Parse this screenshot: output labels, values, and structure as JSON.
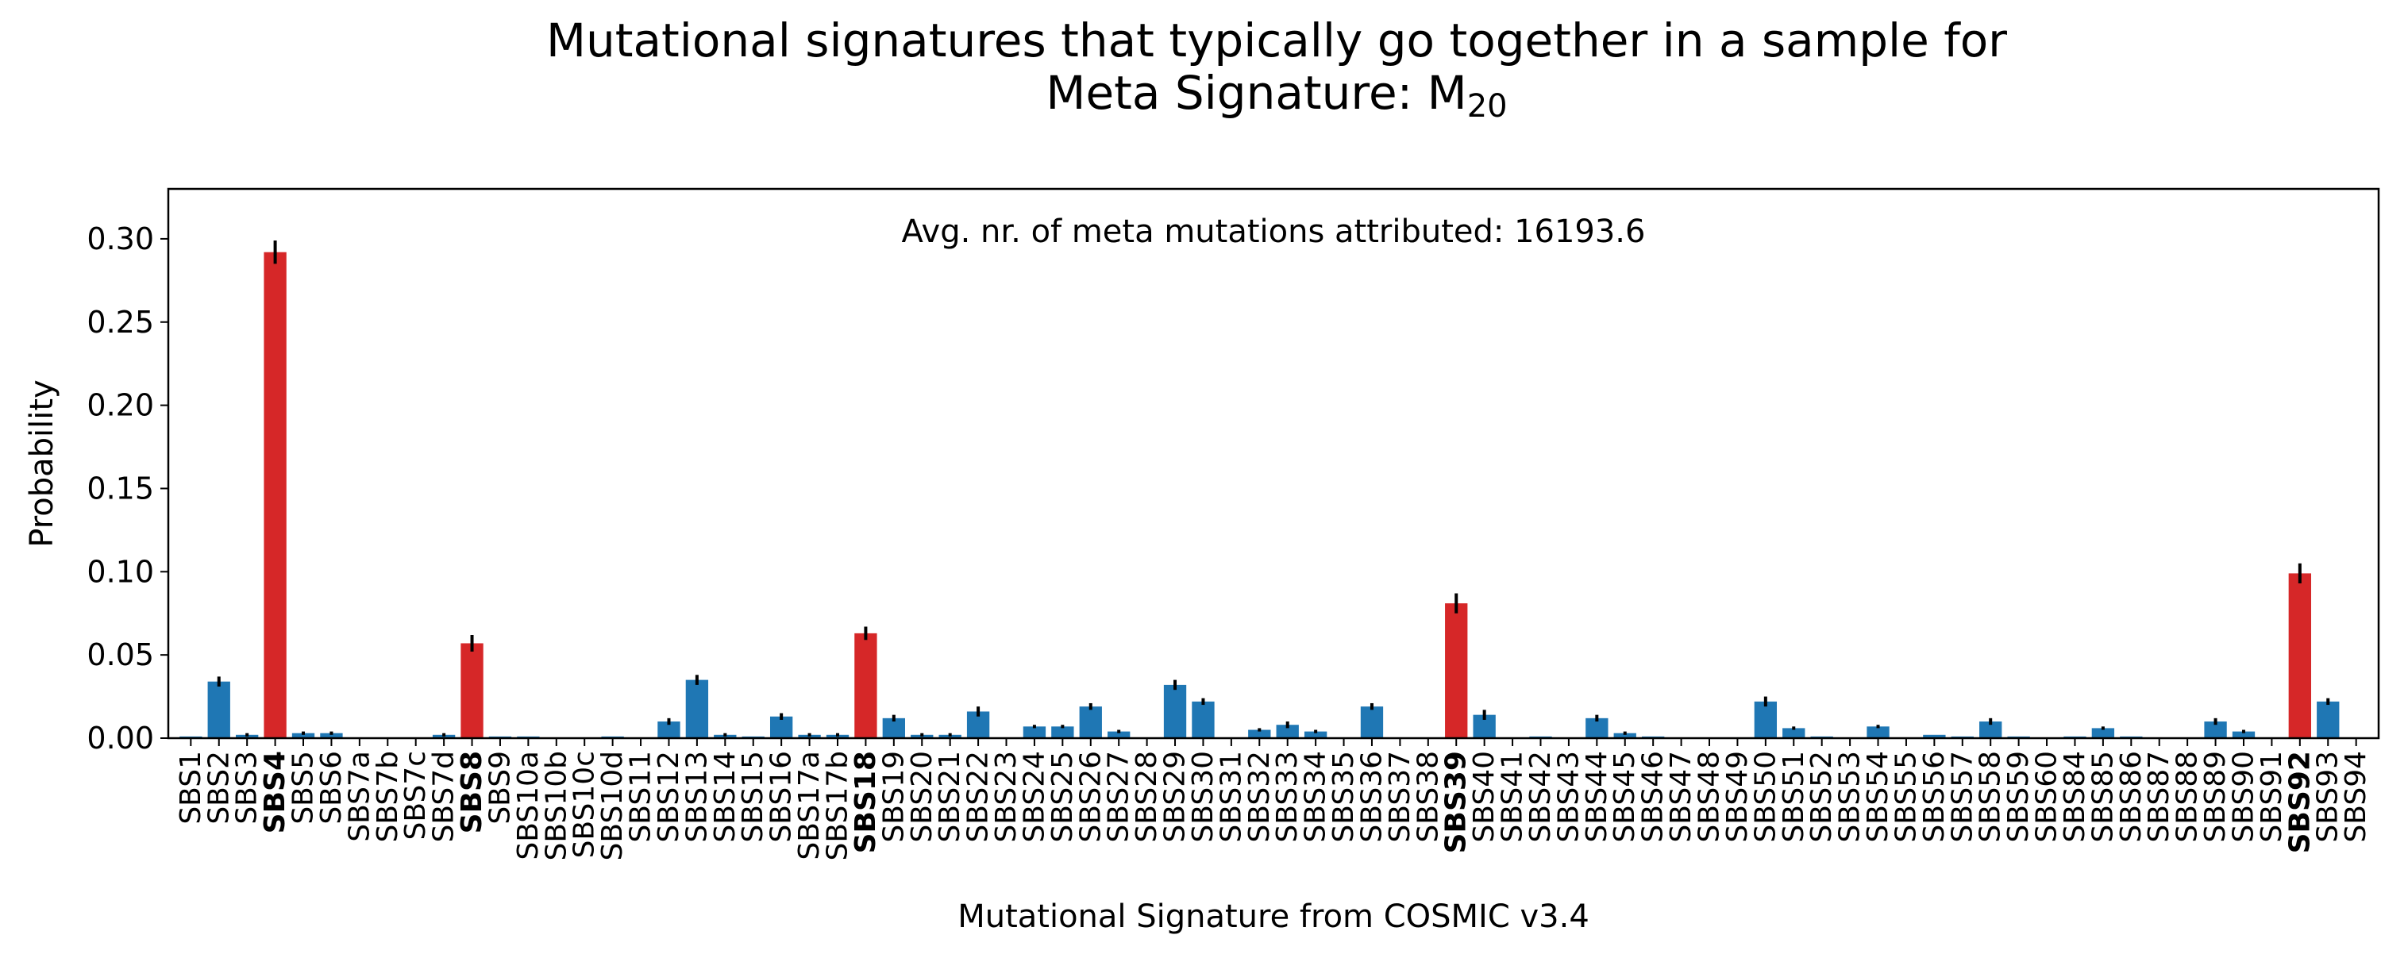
{
  "chart_data": {
    "type": "bar",
    "title": "Mutational signatures that typically go together in a sample for",
    "subtitle_prefix": "Meta Signature: M",
    "subtitle_sub": "20",
    "annotation": "Avg. nr. of meta mutations attributed: 16193.6",
    "xlabel": "Mutational Signature from COSMIC v3.4",
    "ylabel": "Probability",
    "ylim": [
      0,
      0.33
    ],
    "yticks": [
      "0.00",
      "0.05",
      "0.10",
      "0.15",
      "0.20",
      "0.25",
      "0.30"
    ],
    "grid": false,
    "colors": {
      "default": "#1f77b4",
      "highlight": "#d62728",
      "error": "#000000"
    },
    "categories": [
      "SBS1",
      "SBS2",
      "SBS3",
      "SBS4",
      "SBS5",
      "SBS6",
      "SBS7a",
      "SBS7b",
      "SBS7c",
      "SBS7d",
      "SBS8",
      "SBS9",
      "SBS10a",
      "SBS10b",
      "SBS10c",
      "SBS10d",
      "SBS11",
      "SBS12",
      "SBS13",
      "SBS14",
      "SBS15",
      "SBS16",
      "SBS17a",
      "SBS17b",
      "SBS18",
      "SBS19",
      "SBS20",
      "SBS21",
      "SBS22",
      "SBS23",
      "SBS24",
      "SBS25",
      "SBS26",
      "SBS27",
      "SBS28",
      "SBS29",
      "SBS30",
      "SBS31",
      "SBS32",
      "SBS33",
      "SBS34",
      "SBS35",
      "SBS36",
      "SBS37",
      "SBS38",
      "SBS39",
      "SBS40",
      "SBS41",
      "SBS42",
      "SBS43",
      "SBS44",
      "SBS45",
      "SBS46",
      "SBS47",
      "SBS48",
      "SBS49",
      "SBS50",
      "SBS51",
      "SBS52",
      "SBS53",
      "SBS54",
      "SBS55",
      "SBS56",
      "SBS57",
      "SBS58",
      "SBS59",
      "SBS60",
      "SBS84",
      "SBS85",
      "SBS86",
      "SBS87",
      "SBS88",
      "SBS89",
      "SBS90",
      "SBS91",
      "SBS92",
      "SBS93",
      "SBS94"
    ],
    "values": [
      0.001,
      0.034,
      0.002,
      0.292,
      0.003,
      0.003,
      0,
      0,
      0,
      0.002,
      0.057,
      0.001,
      0.001,
      0,
      0,
      0.001,
      0,
      0.01,
      0.035,
      0.002,
      0.001,
      0.013,
      0.002,
      0.002,
      0.063,
      0.012,
      0.002,
      0.002,
      0.016,
      0,
      0.007,
      0.007,
      0.019,
      0.004,
      0,
      0.032,
      0.022,
      0,
      0.005,
      0.008,
      0.004,
      0,
      0.019,
      0,
      0,
      0.081,
      0.014,
      0,
      0.001,
      0,
      0.012,
      0.003,
      0.001,
      0,
      0,
      0,
      0.022,
      0.006,
      0.001,
      0,
      0.007,
      0,
      0.002,
      0.001,
      0.01,
      0.001,
      0,
      0.001,
      0.006,
      0.001,
      0,
      0,
      0.01,
      0.004,
      0,
      0.099,
      0.022,
      0
    ],
    "errors": [
      0,
      0.003,
      0.001,
      0.007,
      0.001,
      0.001,
      0,
      0,
      0,
      0.001,
      0.005,
      0,
      0,
      0,
      0,
      0,
      0,
      0.002,
      0.003,
      0.001,
      0,
      0.002,
      0.001,
      0.001,
      0.004,
      0.002,
      0.001,
      0.001,
      0.003,
      0,
      0.001,
      0.001,
      0.002,
      0.001,
      0,
      0.003,
      0.002,
      0,
      0.001,
      0.002,
      0.001,
      0,
      0.002,
      0,
      0,
      0.006,
      0.003,
      0,
      0,
      0,
      0.002,
      0.001,
      0,
      0,
      0,
      0,
      0.003,
      0.001,
      0,
      0,
      0.001,
      0,
      0,
      0,
      0.002,
      0,
      0,
      0,
      0.001,
      0,
      0,
      0,
      0.002,
      0.001,
      0,
      0.006,
      0.002,
      0
    ],
    "highlighted": [
      "SBS4",
      "SBS8",
      "SBS18",
      "SBS39",
      "SBS92"
    ]
  }
}
